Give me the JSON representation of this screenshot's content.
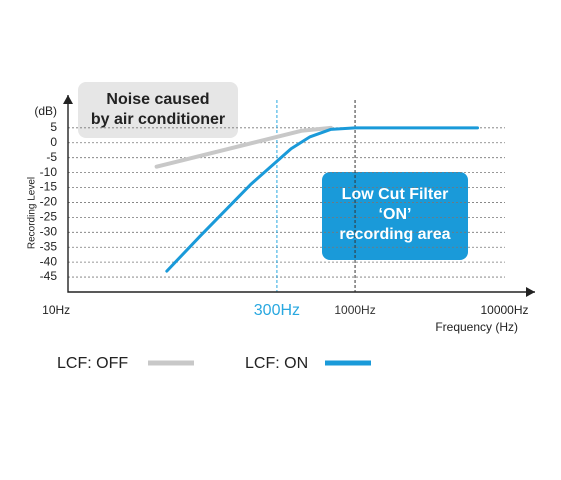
{
  "chart_data": {
    "type": "line",
    "y_unit": "(dB)",
    "ylabel": "Recording Level",
    "xlabel": "Frequency (Hz)",
    "log_x": true,
    "grid": true,
    "xlim": [
      12,
      16000
    ],
    "ylim": [
      -50,
      16
    ],
    "xticks": [
      {
        "value": 10,
        "label": "10Hz"
      },
      {
        "value": 300,
        "label": "300Hz"
      },
      {
        "value": 1000,
        "label": "1000Hz"
      },
      {
        "value": 10000,
        "label": "10000Hz"
      }
    ],
    "yticks": [
      5,
      0,
      -5,
      -10,
      -15,
      -20,
      -25,
      -30,
      -35,
      -40,
      -45
    ],
    "reference_lines": [
      {
        "value": 300,
        "color": "#29a8e0"
      },
      {
        "value": 1000,
        "color": "#333333"
      }
    ],
    "series": [
      {
        "name": "LCF: OFF",
        "color": "#c8c8c8",
        "x": [
          47,
          437,
          690
        ],
        "values": [
          -8,
          4,
          5
        ]
      },
      {
        "name": "LCF: ON",
        "color": "#1a9ad9",
        "x": [
          55,
          93,
          200,
          373,
          500,
          690,
          1000,
          6600
        ],
        "values": [
          -43,
          -31,
          -14,
          -2,
          2,
          4.5,
          5,
          5
        ]
      }
    ],
    "annotations": [
      {
        "lines": [
          "Noise caused",
          "by air conditioner"
        ]
      },
      {
        "lines": [
          "Low Cut Filter",
          "‘ON’",
          "recording area"
        ]
      }
    ]
  }
}
